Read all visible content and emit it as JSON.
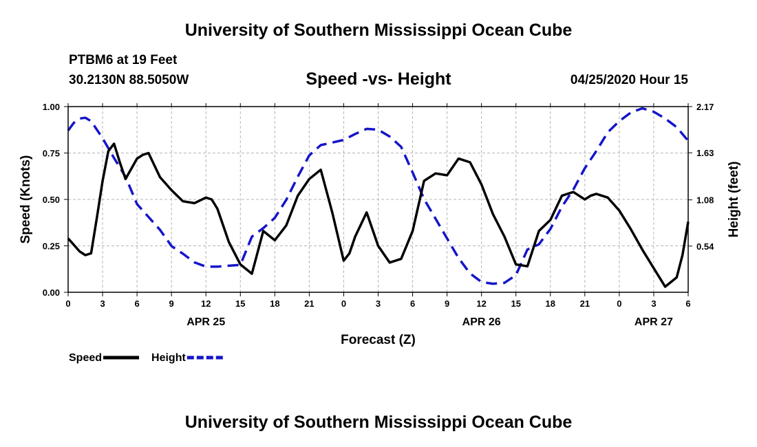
{
  "page": {
    "top_title": "University of Southern Mississippi Ocean Cube",
    "bottom_title": "University of Southern Mississippi Ocean Cube",
    "station": "PTBM6 at 19 Feet",
    "coords": "30.2130N 88.5050W",
    "datetime": "04/25/2020 Hour 15"
  },
  "chart_data": {
    "type": "line",
    "title": "Speed -vs- Height",
    "xlabel": "Forecast (Z)",
    "ylabel": "Speed (Knots)",
    "y2label": "Height (feet)",
    "xlim": [
      0,
      54
    ],
    "ylim": [
      0,
      1
    ],
    "y2lim": [
      0,
      2.17
    ],
    "grid": true,
    "x_ticks": [
      0,
      3,
      6,
      9,
      12,
      15,
      18,
      21,
      24,
      27,
      30,
      33,
      36,
      39,
      42,
      45,
      48,
      51,
      54
    ],
    "x_tick_labels": [
      "0",
      "3",
      "6",
      "9",
      "12",
      "15",
      "18",
      "21",
      "0",
      "3",
      "6",
      "9",
      "12",
      "15",
      "18",
      "21",
      "0",
      "3",
      "6"
    ],
    "y_ticks": [
      "0.00",
      "0.25",
      "0.50",
      "0.75",
      "1.00"
    ],
    "y2_ticks": [
      "0.54",
      "1.08",
      "1.63",
      "2.17"
    ],
    "date_labels": [
      {
        "label": "APR 25",
        "x": 12
      },
      {
        "label": "APR 26",
        "x": 36
      },
      {
        "label": "APR 27",
        "x": 51
      }
    ],
    "legend": [
      {
        "name": "Speed",
        "color": "#000000",
        "style": "solid"
      },
      {
        "name": "Height",
        "color": "#1515c8",
        "style": "dashed"
      }
    ],
    "series": [
      {
        "name": "Speed",
        "axis": "left",
        "color": "#000000",
        "x": [
          0,
          1,
          1.5,
          2,
          2.5,
          3,
          3.5,
          4,
          4.5,
          5,
          6,
          6.5,
          7,
          8,
          9,
          9.5,
          10,
          11,
          12,
          12.5,
          13,
          14,
          15,
          16,
          17,
          18,
          19,
          20,
          21,
          22,
          23,
          24,
          24.5,
          25,
          26,
          27,
          28,
          29,
          30,
          31,
          32,
          33,
          34,
          35,
          36,
          37,
          38,
          39,
          40,
          41,
          42,
          43,
          44,
          45,
          45.5,
          46,
          47,
          48,
          49,
          50,
          51,
          52,
          53,
          53.5,
          54
        ],
        "values": [
          0.29,
          0.22,
          0.2,
          0.21,
          0.4,
          0.6,
          0.76,
          0.8,
          0.7,
          0.61,
          0.72,
          0.74,
          0.75,
          0.62,
          0.55,
          0.52,
          0.49,
          0.48,
          0.51,
          0.5,
          0.45,
          0.27,
          0.15,
          0.1,
          0.33,
          0.28,
          0.36,
          0.52,
          0.61,
          0.66,
          0.43,
          0.17,
          0.21,
          0.3,
          0.43,
          0.25,
          0.16,
          0.18,
          0.33,
          0.6,
          0.64,
          0.63,
          0.72,
          0.7,
          0.58,
          0.42,
          0.3,
          0.15,
          0.14,
          0.33,
          0.39,
          0.52,
          0.54,
          0.5,
          0.52,
          0.53,
          0.51,
          0.44,
          0.34,
          0.23,
          0.13,
          0.03,
          0.08,
          0.2,
          0.38
        ]
      },
      {
        "name": "Height",
        "axis": "right",
        "color": "#1515c8",
        "x": [
          0,
          0.5,
          1,
          1.5,
          2,
          3,
          4,
          5,
          6,
          7,
          8,
          9,
          10,
          11,
          12,
          13,
          14,
          15,
          16,
          17,
          18,
          19,
          20,
          21,
          22,
          23,
          24,
          25,
          26,
          27,
          28,
          29,
          30,
          31,
          32,
          33,
          34,
          35,
          36,
          37,
          38,
          39,
          40,
          41,
          42,
          43,
          44,
          45,
          46,
          47,
          48,
          49,
          50,
          51,
          52,
          53,
          54
        ],
        "values": [
          1.89,
          1.98,
          2.03,
          2.04,
          2.0,
          1.8,
          1.57,
          1.35,
          1.03,
          0.88,
          0.73,
          0.54,
          0.45,
          0.35,
          0.3,
          0.3,
          0.31,
          0.32,
          0.65,
          0.75,
          0.87,
          1.08,
          1.35,
          1.6,
          1.72,
          1.75,
          1.78,
          1.85,
          1.91,
          1.9,
          1.82,
          1.7,
          1.4,
          1.09,
          0.86,
          0.63,
          0.4,
          0.22,
          0.12,
          0.1,
          0.11,
          0.2,
          0.5,
          0.56,
          0.74,
          1.0,
          1.2,
          1.45,
          1.65,
          1.87,
          2.0,
          2.1,
          2.15,
          2.11,
          2.03,
          1.93,
          1.77
        ]
      }
    ]
  }
}
